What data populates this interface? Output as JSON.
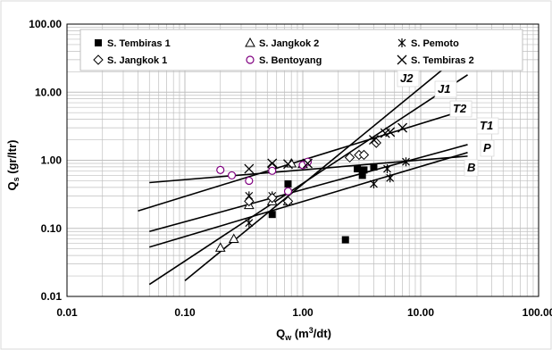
{
  "colors": {
    "frame": "#d9d9d9",
    "grid": "#bfbfbf",
    "ink": "#000000",
    "bentoyang": "#800080"
  },
  "chart_data": {
    "type": "scatter",
    "title": "",
    "xlabel": "Q",
    "xlabel_sub": "w",
    "xlabel_unit": " (m",
    "xlabel_sup": "3",
    "xlabel_unit_end": "/dt)",
    "ylabel": "Q",
    "ylabel_sub": "s",
    "ylabel_unit": " (gr/ltr)",
    "x_scale": "log",
    "y_scale": "log",
    "xlim": [
      0.01,
      100
    ],
    "ylim": [
      0.01,
      100
    ],
    "x_ticks": [
      "0.01",
      "0.10",
      "1.00",
      "10.00",
      "100.00"
    ],
    "y_ticks": [
      "0.01",
      "0.10",
      "1.00",
      "10.00",
      "100.00"
    ],
    "grid": true,
    "legend_position": "top",
    "series": [
      {
        "name": "S. Tembiras 1",
        "marker": "filled-square",
        "points": [
          [
            0.55,
            0.16
          ],
          [
            0.75,
            0.45
          ],
          [
            2.3,
            0.068
          ],
          [
            2.9,
            0.75
          ],
          [
            3.2,
            0.6
          ],
          [
            3.3,
            0.72
          ],
          [
            4.0,
            0.8
          ]
        ]
      },
      {
        "name": "S. Jangkok 2",
        "marker": "open-triangle",
        "points": [
          [
            0.2,
            0.052
          ],
          [
            0.26,
            0.07
          ],
          [
            0.35,
            0.22
          ],
          [
            0.55,
            0.25
          ],
          [
            0.75,
            0.25
          ],
          [
            0.8,
            0.9
          ],
          [
            1.0,
            0.88
          ]
        ]
      },
      {
        "name": "S. Pemoto",
        "marker": "asterisk",
        "points": [
          [
            0.35,
            0.3
          ],
          [
            0.35,
            0.12
          ],
          [
            0.55,
            0.3
          ],
          [
            4.0,
            0.45
          ],
          [
            5.2,
            0.75
          ],
          [
            5.5,
            0.55
          ],
          [
            7.5,
            0.95
          ]
        ]
      },
      {
        "name": "S. Jangkok 1",
        "marker": "open-diamond",
        "points": [
          [
            0.35,
            0.25
          ],
          [
            0.55,
            0.28
          ],
          [
            0.55,
            0.8
          ],
          [
            0.75,
            0.25
          ],
          [
            2.5,
            1.1
          ],
          [
            3.0,
            1.2
          ],
          [
            3.3,
            1.2
          ],
          [
            4.2,
            1.8
          ]
        ]
      },
      {
        "name": "S. Bentoyang",
        "marker": "open-circle",
        "points": [
          [
            0.2,
            0.72
          ],
          [
            0.25,
            0.6
          ],
          [
            0.35,
            0.5
          ],
          [
            0.55,
            0.7
          ],
          [
            0.75,
            0.35
          ],
          [
            1.0,
            0.85
          ],
          [
            1.1,
            0.95
          ]
        ]
      },
      {
        "name": "S. Tembiras 2",
        "marker": "x-cross",
        "points": [
          [
            0.35,
            0.75
          ],
          [
            0.55,
            0.9
          ],
          [
            0.75,
            0.88
          ],
          [
            1.1,
            0.9
          ],
          [
            4.0,
            2.0
          ],
          [
            5.0,
            2.5
          ],
          [
            5.5,
            2.6
          ],
          [
            7.0,
            3.0
          ]
        ]
      }
    ],
    "regression_lines": [
      {
        "label": "J2",
        "from": [
          0.1,
          0.017
        ],
        "to": [
          18,
          27
        ]
      },
      {
        "label": "J1",
        "from": [
          0.05,
          0.015
        ],
        "to": [
          25,
          18
        ]
      },
      {
        "label": "T2",
        "from": [
          0.04,
          0.18
        ],
        "to": [
          20,
          5.0
        ]
      },
      {
        "label": "T1",
        "from": [
          0.05,
          0.47
        ],
        "to": [
          25,
          1.15
        ]
      },
      {
        "label": "P",
        "from": [
          0.05,
          0.09
        ],
        "to": [
          25,
          1.7
        ]
      },
      {
        "label": "B",
        "from": [
          0.05,
          0.053
        ],
        "to": [
          25,
          1.3
        ]
      }
    ],
    "line_labels": [
      "J2",
      "J1",
      "T2",
      "T1",
      "P",
      "B"
    ]
  }
}
